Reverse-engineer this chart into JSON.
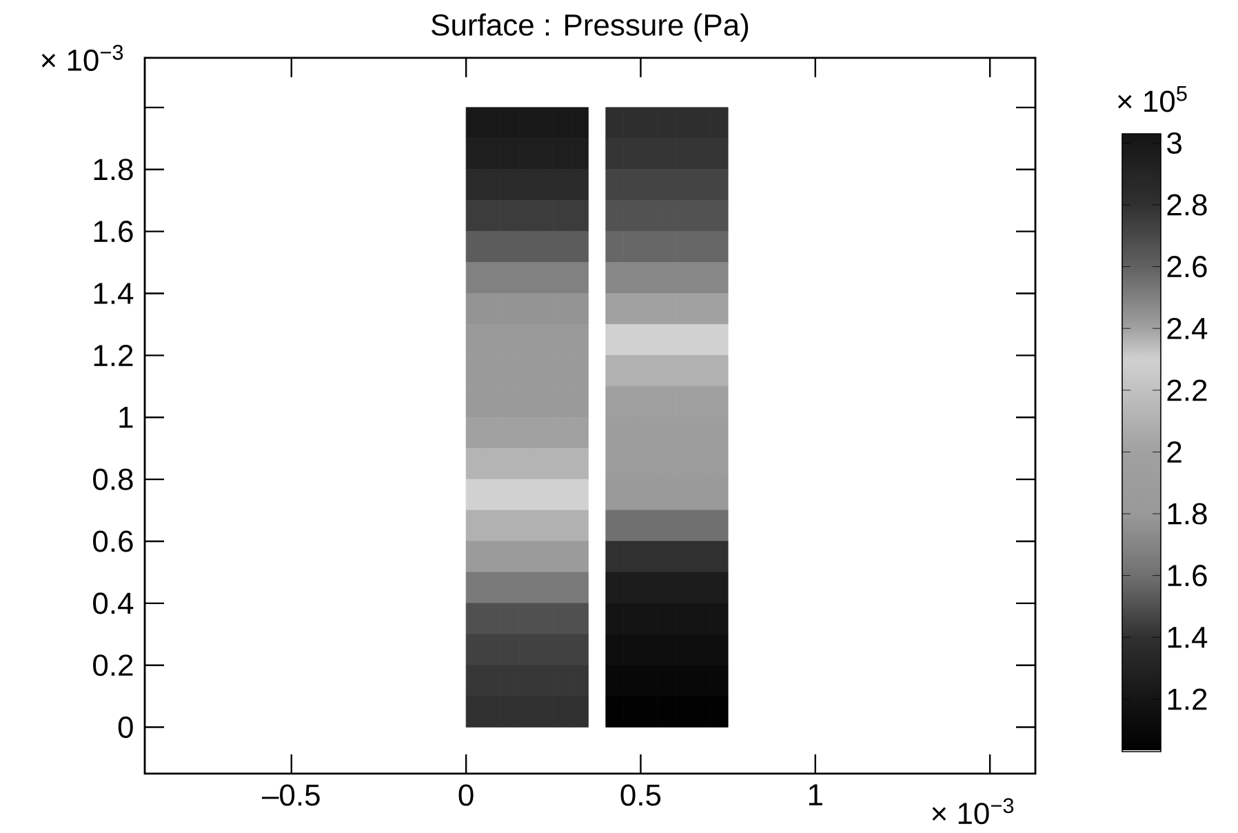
{
  "chart_data": {
    "type": "heatmap",
    "title": "Surface : Pressure (Pa)",
    "xlabel": "× 10$^{−3}$",
    "ylabel": "× 10$^{−3}$",
    "clabel": "× 10$^{5}$",
    "xlim": [
      -0.92,
      1.63
    ],
    "ylim": [
      -0.15,
      2.16
    ],
    "xticks": [
      {
        "value": -0.5,
        "label": "–0.5"
      },
      0,
      0.5,
      1,
      {
        "value": 1.5,
        "label": null
      }
    ],
    "yticks": [
      0,
      0.2,
      0.4,
      0.6,
      0.8,
      1,
      1.2,
      1.4,
      1.6,
      1.8,
      {
        "value": 2,
        "label": null
      }
    ],
    "clim": [
      1.03,
      3.03
    ],
    "cticks": [
      1.2,
      1.4,
      1.6,
      1.8,
      2,
      2.2,
      2.4,
      2.6,
      2.8,
      3
    ],
    "x": [
      0.025,
      0.075,
      0.125,
      0.175,
      0.225,
      0.275,
      0.325,
      0.375,
      0.425,
      0.475,
      0.525,
      0.575,
      0.625,
      0.675,
      0.725
    ],
    "y": [
      1.95,
      1.85,
      1.75,
      1.65,
      1.55,
      1.45,
      1.35,
      1.25,
      1.15,
      1.05,
      0.95,
      0.85,
      0.75,
      0.65,
      0.55,
      0.45,
      0.35,
      0.25,
      0.15,
      0.05
    ],
    "cells": [
      [
        3.0,
        3.0,
        3.0,
        3.0,
        3.0,
        3.0,
        3.0,
        null,
        2.82,
        2.82,
        2.82,
        2.82,
        2.82,
        2.82,
        2.82
      ],
      [
        2.95,
        2.95,
        2.95,
        2.95,
        2.95,
        2.95,
        2.95,
        null,
        2.78,
        2.78,
        2.78,
        2.78,
        2.78,
        2.78,
        2.78
      ],
      [
        2.85,
        2.85,
        2.85,
        2.85,
        2.85,
        2.85,
        2.85,
        null,
        2.72,
        2.72,
        2.72,
        2.72,
        2.72,
        2.72,
        2.72
      ],
      [
        2.75,
        2.75,
        2.75,
        2.75,
        2.75,
        2.75,
        2.75,
        null,
        2.66,
        2.66,
        2.66,
        2.66,
        2.66,
        2.66,
        2.66
      ],
      [
        2.62,
        2.62,
        2.62,
        2.62,
        2.62,
        2.62,
        2.62,
        null,
        2.58,
        2.58,
        2.58,
        2.58,
        2.58,
        2.58,
        2.58
      ],
      [
        2.5,
        2.5,
        2.5,
        2.5,
        2.5,
        2.5,
        2.5,
        null,
        2.48,
        2.48,
        2.48,
        2.48,
        2.48,
        2.48,
        2.48
      ],
      [
        2.44,
        2.44,
        2.44,
        2.44,
        2.44,
        2.44,
        2.44,
        null,
        2.4,
        2.4,
        2.4,
        2.4,
        2.4,
        2.4,
        2.4
      ],
      [
        2.42,
        2.42,
        2.42,
        2.42,
        2.42,
        2.42,
        2.42,
        null,
        2.3,
        2.3,
        2.3,
        2.3,
        2.3,
        2.3,
        2.3
      ],
      [
        2.42,
        2.42,
        2.42,
        2.42,
        2.42,
        2.42,
        2.42,
        null,
        2.1,
        2.1,
        2.1,
        2.1,
        2.1,
        2.1,
        2.1
      ],
      [
        2.42,
        2.42,
        2.42,
        2.42,
        2.42,
        2.42,
        2.42,
        null,
        1.95,
        1.95,
        1.95,
        1.95,
        1.95,
        1.95,
        1.95
      ],
      [
        2.4,
        2.4,
        2.4,
        2.4,
        2.4,
        2.4,
        2.4,
        null,
        1.9,
        1.9,
        1.9,
        1.9,
        1.9,
        1.9,
        1.9
      ],
      [
        2.36,
        2.36,
        2.36,
        2.36,
        2.36,
        2.36,
        2.36,
        null,
        1.88,
        1.88,
        1.88,
        1.88,
        1.88,
        1.88,
        1.88
      ],
      [
        2.3,
        2.3,
        2.3,
        2.3,
        2.3,
        2.3,
        2.3,
        null,
        1.8,
        1.8,
        1.8,
        1.8,
        1.8,
        1.8,
        1.8
      ],
      [
        2.1,
        2.1,
        2.1,
        2.1,
        2.1,
        2.1,
        2.1,
        null,
        1.6,
        1.6,
        1.6,
        1.6,
        1.6,
        1.6,
        1.6
      ],
      [
        1.85,
        1.85,
        1.85,
        1.85,
        1.85,
        1.85,
        1.85,
        null,
        1.4,
        1.4,
        1.4,
        1.4,
        1.4,
        1.4,
        1.4
      ],
      [
        1.65,
        1.65,
        1.65,
        1.65,
        1.65,
        1.65,
        1.65,
        null,
        1.25,
        1.25,
        1.25,
        1.25,
        1.25,
        1.25,
        1.25
      ],
      [
        1.5,
        1.5,
        1.5,
        1.5,
        1.5,
        1.5,
        1.5,
        null,
        1.2,
        1.2,
        1.2,
        1.2,
        1.2,
        1.2,
        1.2
      ],
      [
        1.45,
        1.45,
        1.45,
        1.45,
        1.45,
        1.45,
        1.45,
        null,
        1.15,
        1.15,
        1.15,
        1.15,
        1.15,
        1.15,
        1.15
      ],
      [
        1.42,
        1.42,
        1.42,
        1.42,
        1.42,
        1.42,
        1.42,
        null,
        1.1,
        1.1,
        1.1,
        1.1,
        1.1,
        1.1,
        1.1
      ],
      [
        1.4,
        1.4,
        1.4,
        1.4,
        1.4,
        1.4,
        1.4,
        null,
        1.05,
        1.05,
        1.05,
        1.05,
        1.05,
        1.05,
        1.05
      ]
    ]
  }
}
